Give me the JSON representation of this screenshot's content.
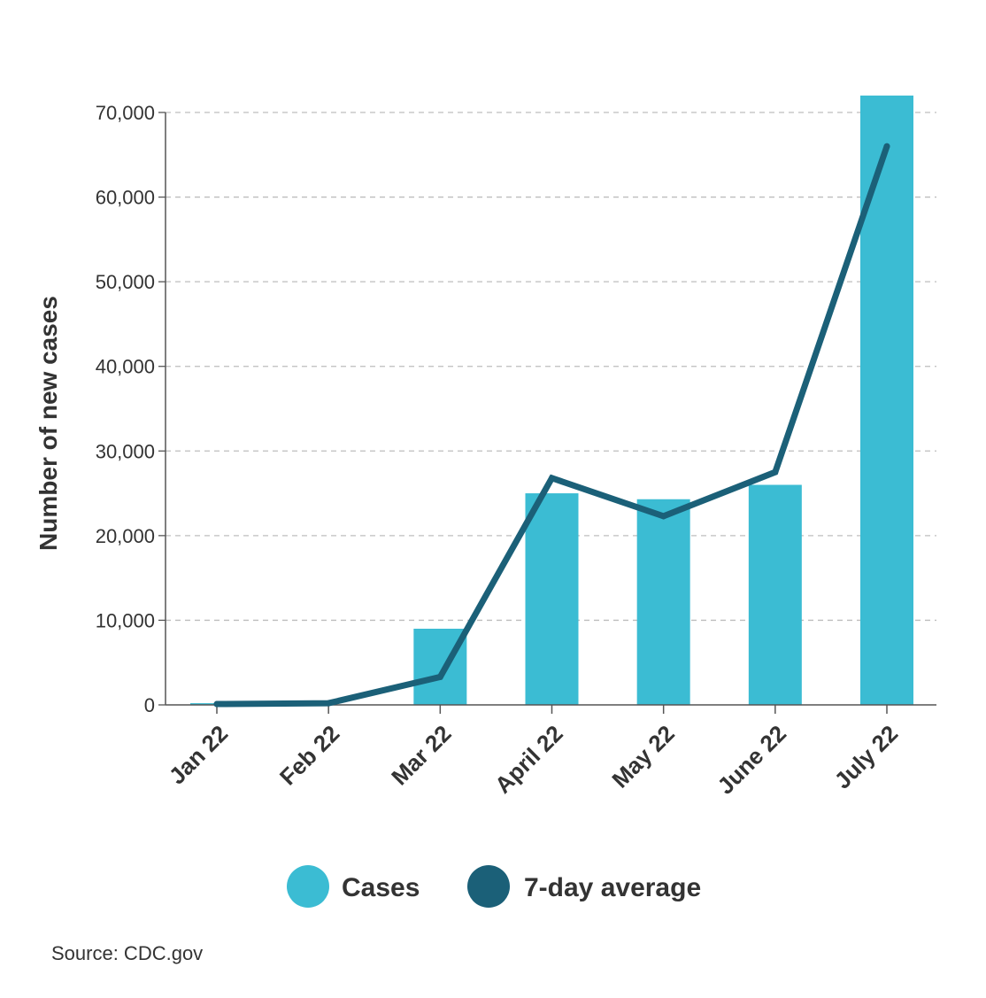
{
  "chart_data": {
    "type": "bar",
    "title": "",
    "xlabel": "",
    "ylabel": "Number of new cases",
    "ylim": [
      0,
      70000
    ],
    "y_ticks": [
      0,
      10000,
      20000,
      30000,
      40000,
      50000,
      60000,
      70000
    ],
    "y_tick_labels": [
      "0",
      "10,000",
      "20,000",
      "30,000",
      "40,000",
      "50,000",
      "60,000",
      "70,000"
    ],
    "grid": true,
    "legend_position": "bottom",
    "categories": [
      "Jan 22",
      "Feb 22",
      "Mar 22",
      "April 22",
      "May 22",
      "June 22",
      "July 22"
    ],
    "series": [
      {
        "name": "Cases",
        "type": "bar",
        "color": "#3bbcd3",
        "values": [
          200,
          0,
          9000,
          25000,
          24300,
          26000,
          72000
        ]
      },
      {
        "name": "7-day average",
        "type": "line",
        "color": "#1b6078",
        "values": [
          100,
          200,
          3300,
          26800,
          22300,
          27500,
          66000
        ]
      }
    ]
  },
  "source": "Source: CDC.gov"
}
